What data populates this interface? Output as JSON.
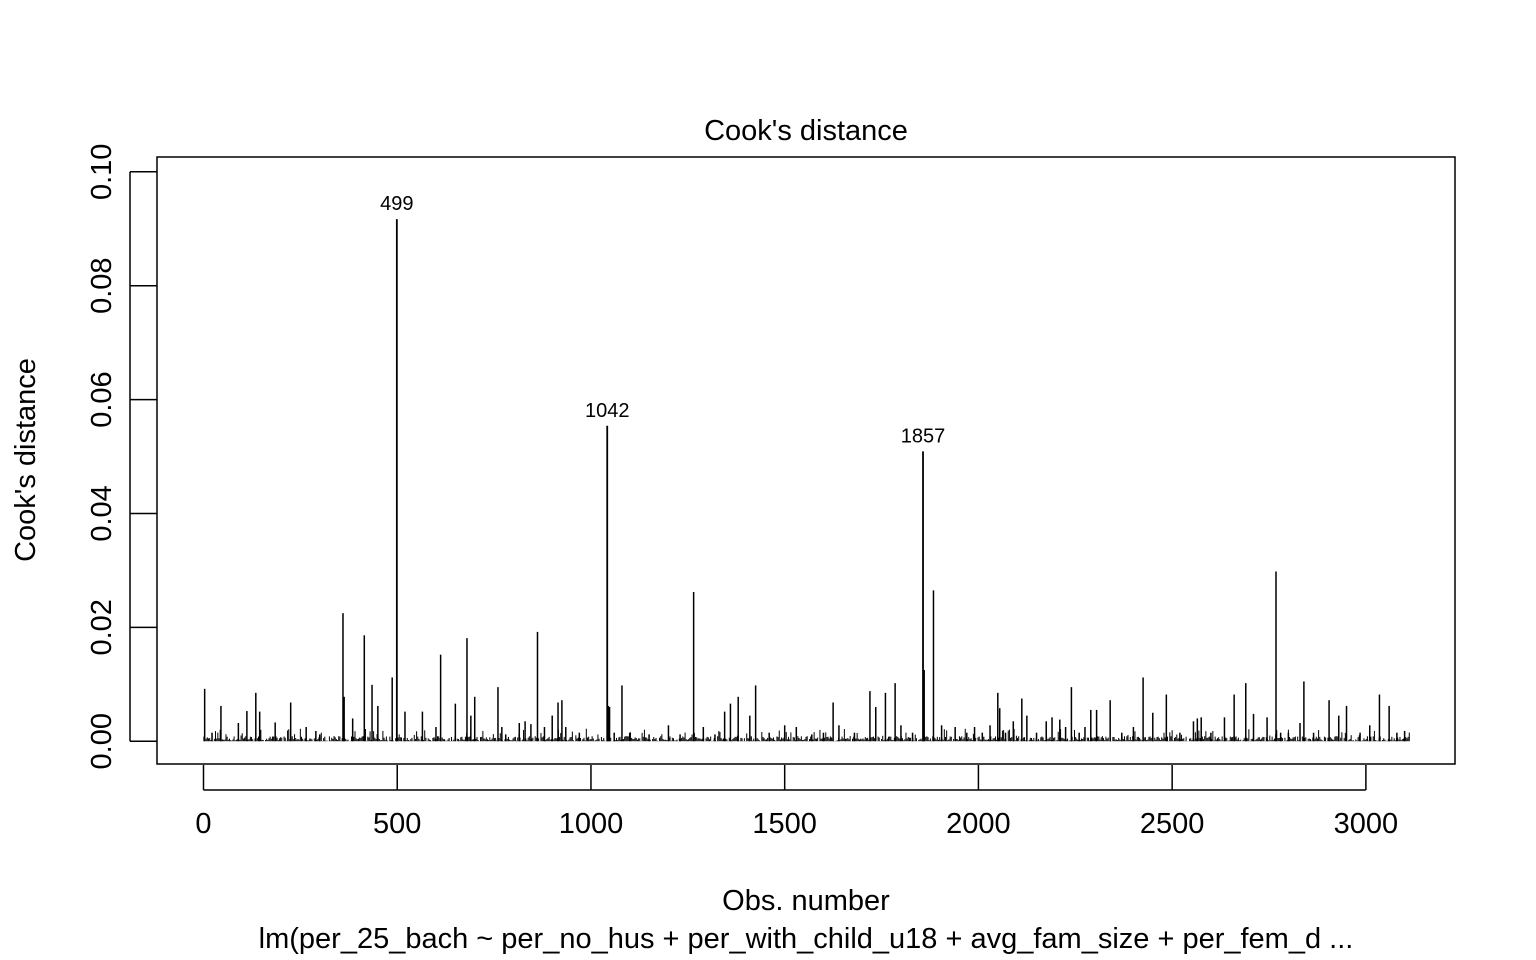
{
  "chart_data": {
    "type": "bar",
    "title": "Cook's distance",
    "xlabel": "Obs. number",
    "ylabel": "Cook's distance",
    "subtitle": "lm(per_25_bach ~ per_no_hus + per_with_child_u18 + avg_fam_size + per_fem_d ...",
    "xlim": [
      -120,
      3230
    ],
    "ylim": [
      -0.004,
      0.1026
    ],
    "x_ticks": [
      0,
      500,
      1000,
      1500,
      2000,
      2500,
      3000
    ],
    "x_tick_labels": [
      "0",
      "500",
      "1000",
      "1500",
      "2000",
      "2500",
      "3000"
    ],
    "y_ticks": [
      0.0,
      0.02,
      0.04,
      0.06,
      0.08,
      0.1
    ],
    "y_tick_labels": [
      "0.00",
      "0.02",
      "0.04",
      "0.06",
      "0.08",
      "0.10"
    ],
    "n_obs": 3112,
    "grid": false,
    "legend": "none",
    "bar_color": "#000000",
    "highlighted": [
      {
        "x": 499,
        "y": 0.0917,
        "label": "499"
      },
      {
        "x": 1042,
        "y": 0.0554,
        "label": "1042"
      },
      {
        "x": 1857,
        "y": 0.0509,
        "label": "1857"
      }
    ],
    "x": [
      3,
      22,
      45,
      90,
      112,
      135,
      145,
      185,
      225,
      265,
      290,
      300,
      360,
      363,
      385,
      415,
      435,
      450,
      487,
      520,
      565,
      600,
      612,
      650,
      680,
      690,
      700,
      760,
      770,
      780,
      815,
      830,
      845,
      862,
      880,
      900,
      915,
      925,
      935,
      970,
      1045,
      1048,
      1060,
      1080,
      1100,
      1150,
      1200,
      1230,
      1265,
      1290,
      1320,
      1345,
      1360,
      1380,
      1410,
      1425,
      1460,
      1500,
      1530,
      1570,
      1600,
      1625,
      1640,
      1680,
      1720,
      1735,
      1760,
      1785,
      1800,
      1830,
      1860,
      1884,
      1905,
      1940,
      1970,
      1990,
      2010,
      2030,
      2050,
      2055,
      2070,
      2090,
      2112,
      2125,
      2150,
      2175,
      2190,
      2210,
      2225,
      2240,
      2260,
      2275,
      2290,
      2305,
      2340,
      2370,
      2400,
      2425,
      2450,
      2485,
      2520,
      2555,
      2565,
      2575,
      2600,
      2635,
      2660,
      2690,
      2710,
      2745,
      2768,
      2780,
      2800,
      2830,
      2840,
      2865,
      2905,
      2930,
      2950,
      2985,
      3010,
      3035,
      3060,
      3080,
      3100
    ],
    "values": [
      0.0092,
      0.0015,
      0.0062,
      0.0032,
      0.0053,
      0.0085,
      0.0052,
      0.0033,
      0.0068,
      0.0025,
      0.0018,
      0.0012,
      0.0225,
      0.0078,
      0.004,
      0.0186,
      0.0099,
      0.0062,
      0.0112,
      0.0052,
      0.0052,
      0.0025,
      0.0152,
      0.0066,
      0.0181,
      0.0045,
      0.0078,
      0.0095,
      0.0025,
      0.0012,
      0.0032,
      0.0035,
      0.003,
      0.0192,
      0.0025,
      0.0045,
      0.0068,
      0.0072,
      0.0025,
      0.0015,
      0.0062,
      0.006,
      0.0015,
      0.0098,
      0.0015,
      0.0012,
      0.0028,
      0.0012,
      0.0262,
      0.0025,
      0.0012,
      0.0052,
      0.0066,
      0.0078,
      0.0045,
      0.0098,
      0.0015,
      0.0028,
      0.0025,
      0.0012,
      0.0015,
      0.0068,
      0.0028,
      0.0015,
      0.0088,
      0.006,
      0.0085,
      0.0102,
      0.0028,
      0.0015,
      0.0125,
      0.0265,
      0.0028,
      0.0025,
      0.0015,
      0.0025,
      0.0015,
      0.0028,
      0.0085,
      0.0058,
      0.0015,
      0.0035,
      0.0075,
      0.0045,
      0.0015,
      0.0035,
      0.0042,
      0.0038,
      0.0025,
      0.0095,
      0.0015,
      0.0025,
      0.0055,
      0.0055,
      0.0072,
      0.0015,
      0.0025,
      0.0112,
      0.005,
      0.0082,
      0.0015,
      0.0035,
      0.004,
      0.0042,
      0.0015,
      0.0042,
      0.0082,
      0.0102,
      0.0048,
      0.0042,
      0.0298,
      0.0015,
      0.0015,
      0.0032,
      0.0105,
      0.0015,
      0.0072,
      0.0045,
      0.0062,
      0.0015,
      0.0028,
      0.0082,
      0.0062,
      0.0015,
      0.0018
    ]
  }
}
